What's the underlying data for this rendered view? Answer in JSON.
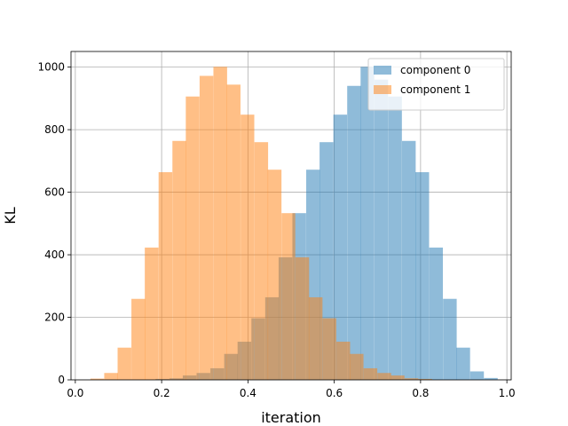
{
  "chart_data": {
    "type": "bar",
    "title": "",
    "xlabel": "iteration",
    "ylabel": "KL",
    "xlim": [
      -0.01,
      1.01
    ],
    "ylim": [
      0,
      1050
    ],
    "xticks": [
      "0.0",
      "0.2",
      "0.4",
      "0.6",
      "0.8",
      "1.0"
    ],
    "yticks": [
      "0",
      "200",
      "400",
      "600",
      "800",
      "1000"
    ],
    "grid": true,
    "legend_position": "top-right",
    "bin_width": 0.0317,
    "series": [
      {
        "name": "component 0",
        "color": "#1f77b4",
        "opacity": 0.5,
        "bins": [
          {
            "x": 0.186,
            "y": 3
          },
          {
            "x": 0.218,
            "y": 5
          },
          {
            "x": 0.249,
            "y": 14
          },
          {
            "x": 0.281,
            "y": 22
          },
          {
            "x": 0.313,
            "y": 37
          },
          {
            "x": 0.345,
            "y": 83
          },
          {
            "x": 0.376,
            "y": 122
          },
          {
            "x": 0.408,
            "y": 197
          },
          {
            "x": 0.44,
            "y": 264
          },
          {
            "x": 0.471,
            "y": 392
          },
          {
            "x": 0.503,
            "y": 533
          },
          {
            "x": 0.535,
            "y": 672
          },
          {
            "x": 0.566,
            "y": 760
          },
          {
            "x": 0.598,
            "y": 848
          },
          {
            "x": 0.63,
            "y": 940
          },
          {
            "x": 0.661,
            "y": 1001
          },
          {
            "x": 0.693,
            "y": 960
          },
          {
            "x": 0.725,
            "y": 906
          },
          {
            "x": 0.757,
            "y": 764
          },
          {
            "x": 0.788,
            "y": 664
          },
          {
            "x": 0.82,
            "y": 423
          },
          {
            "x": 0.852,
            "y": 259
          },
          {
            "x": 0.883,
            "y": 103
          },
          {
            "x": 0.915,
            "y": 27
          },
          {
            "x": 0.947,
            "y": 6
          }
        ]
      },
      {
        "name": "component 1",
        "color": "#ff7f0e",
        "opacity": 0.5,
        "bins": [
          {
            "x": 0.035,
            "y": 4
          },
          {
            "x": 0.067,
            "y": 22
          },
          {
            "x": 0.098,
            "y": 103
          },
          {
            "x": 0.13,
            "y": 259
          },
          {
            "x": 0.161,
            "y": 423
          },
          {
            "x": 0.193,
            "y": 664
          },
          {
            "x": 0.225,
            "y": 764
          },
          {
            "x": 0.256,
            "y": 906
          },
          {
            "x": 0.288,
            "y": 972
          },
          {
            "x": 0.32,
            "y": 1001
          },
          {
            "x": 0.351,
            "y": 944
          },
          {
            "x": 0.383,
            "y": 848
          },
          {
            "x": 0.415,
            "y": 760
          },
          {
            "x": 0.446,
            "y": 672
          },
          {
            "x": 0.478,
            "y": 533
          },
          {
            "x": 0.51,
            "y": 392
          },
          {
            "x": 0.541,
            "y": 264
          },
          {
            "x": 0.573,
            "y": 197
          },
          {
            "x": 0.605,
            "y": 122
          },
          {
            "x": 0.636,
            "y": 83
          },
          {
            "x": 0.668,
            "y": 37
          },
          {
            "x": 0.7,
            "y": 22
          },
          {
            "x": 0.731,
            "y": 14
          },
          {
            "x": 0.763,
            "y": 5
          },
          {
            "x": 0.795,
            "y": 3
          }
        ]
      }
    ]
  }
}
